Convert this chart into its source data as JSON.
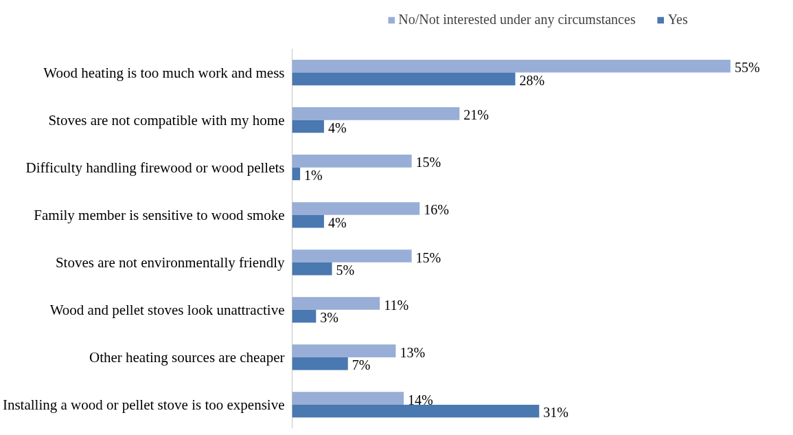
{
  "chart_data": {
    "type": "bar",
    "orientation": "horizontal",
    "categories": [
      "Wood heating is too much work and mess",
      "Stoves are not compatible with my home",
      "Difficulty handling firewood or wood pellets",
      "Family member is sensitive to wood smoke",
      "Stoves are not environmentally friendly",
      "Wood and pellet stoves look unattractive",
      "Other heating sources are cheaper",
      "Installing a wood or pellet stove is too expensive"
    ],
    "series": [
      {
        "name": "No/Not interested under any circumstances",
        "color": "#98aed6",
        "values": [
          55,
          21,
          15,
          16,
          15,
          11,
          13,
          14
        ],
        "value_labels": [
          "55%",
          "21%",
          "15%",
          "16%",
          "15%",
          "11%",
          "13%",
          "14%"
        ]
      },
      {
        "name": "Yes",
        "color": "#4a78b0",
        "values": [
          28,
          4,
          1,
          4,
          5,
          3,
          7,
          31
        ],
        "value_labels": [
          "28%",
          "4%",
          "1%",
          "4%",
          "5%",
          "3%",
          "7%",
          "31%"
        ]
      }
    ],
    "legend": "top",
    "grid": false
  }
}
